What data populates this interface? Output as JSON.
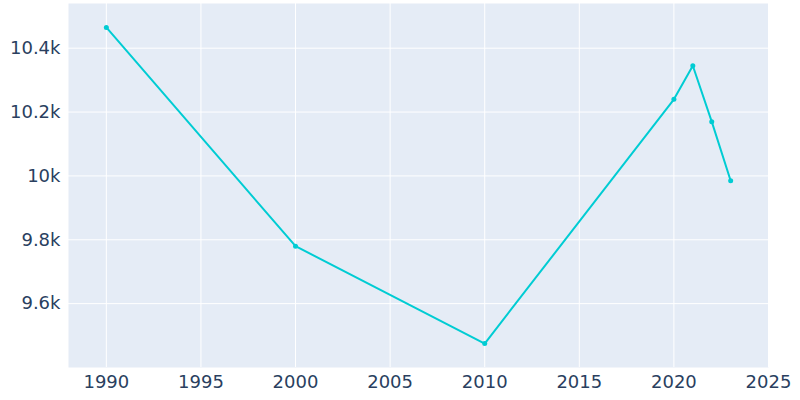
{
  "chart_data": {
    "type": "line",
    "x": [
      1990,
      2000,
      2010,
      2020,
      2021,
      2022,
      2023
    ],
    "values": [
      10465,
      9780,
      9475,
      10240,
      10345,
      10170,
      9985
    ],
    "color": "#00ccd3",
    "marker": "circle",
    "xlim": [
      1988,
      2025
    ],
    "xticks": [
      1990,
      1995,
      2000,
      2005,
      2010,
      2015,
      2020,
      2025
    ],
    "ylim": [
      9400,
      10540
    ],
    "yticks": [
      {
        "value": 9600,
        "label": "9.6k"
      },
      {
        "value": 9800,
        "label": "9.8k"
      },
      {
        "value": 10000,
        "label": "10k"
      },
      {
        "value": 10200,
        "label": "10.2k"
      },
      {
        "value": 10400,
        "label": "10.4k"
      }
    ],
    "grid": true
  }
}
